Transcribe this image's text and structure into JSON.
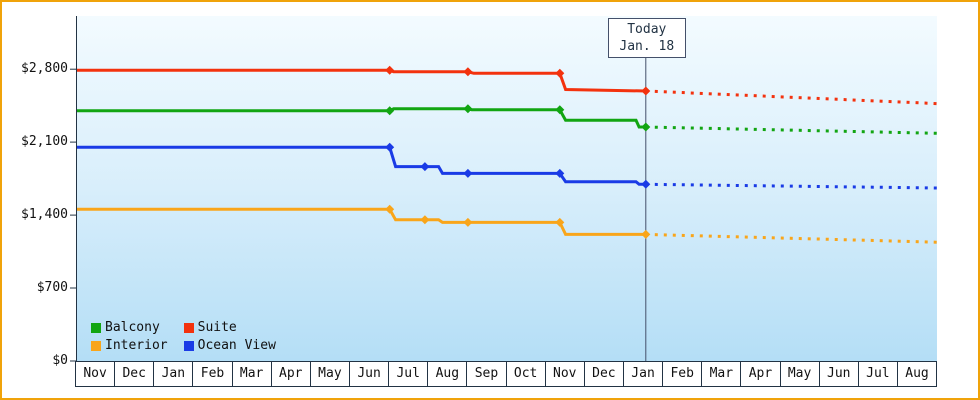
{
  "chart_data": {
    "type": "line",
    "x_axis": {
      "tick_labels": [
        "Nov",
        "Dec",
        "Jan",
        "Feb",
        "Mar",
        "Apr",
        "May",
        "Jun",
        "Jul",
        "Aug",
        "Sep",
        "Oct",
        "Nov",
        "Dec",
        "Jan",
        "Feb",
        "Mar",
        "Apr",
        "May",
        "Jun",
        "Jul",
        "Aug"
      ],
      "range_months": [
        0,
        22
      ]
    },
    "y_axis": {
      "range": [
        0,
        3310
      ],
      "ticks": [
        {
          "label": "$2,800",
          "value": 2800
        },
        {
          "label": "$2,100",
          "value": 2100
        },
        {
          "label": "$1,400",
          "value": 1400
        },
        {
          "label": "$700",
          "value": 700
        },
        {
          "label": "$0",
          "value": 0
        }
      ],
      "grid": false
    },
    "today": {
      "x_month": 14.55,
      "line1": "Today",
      "line2": "Jan. 18"
    },
    "series": [
      {
        "name": "Suite",
        "color": "#f3320e",
        "solid": [
          [
            0,
            2790
          ],
          [
            8,
            2790
          ],
          [
            8.1,
            2775
          ],
          [
            10,
            2775
          ],
          [
            10.15,
            2760
          ],
          [
            12.35,
            2760
          ],
          [
            12.5,
            2605
          ],
          [
            14.55,
            2590
          ]
        ],
        "markers": [
          [
            8,
            2790
          ],
          [
            10,
            2775
          ],
          [
            12.35,
            2760
          ],
          [
            14.55,
            2590
          ]
        ],
        "dotted": [
          [
            14.55,
            2590
          ],
          [
            22,
            2470
          ]
        ]
      },
      {
        "name": "Balcony",
        "color": "#12a512",
        "solid": [
          [
            0,
            2400
          ],
          [
            8,
            2400
          ],
          [
            8.1,
            2420
          ],
          [
            10,
            2420
          ],
          [
            10.1,
            2410
          ],
          [
            12.35,
            2410
          ],
          [
            12.5,
            2310
          ],
          [
            14.3,
            2310
          ],
          [
            14.38,
            2245
          ],
          [
            14.55,
            2245
          ]
        ],
        "markers": [
          [
            8,
            2400
          ],
          [
            10,
            2420
          ],
          [
            12.35,
            2410
          ],
          [
            14.55,
            2245
          ]
        ],
        "dotted": [
          [
            14.55,
            2245
          ],
          [
            22,
            2185
          ]
        ]
      },
      {
        "name": "Ocean View",
        "color": "#1a3be6",
        "solid": [
          [
            0,
            2050
          ],
          [
            8,
            2050
          ],
          [
            8.15,
            1865
          ],
          [
            9.25,
            1865
          ],
          [
            9.35,
            1800
          ],
          [
            12.35,
            1800
          ],
          [
            12.5,
            1720
          ],
          [
            14.3,
            1720
          ],
          [
            14.38,
            1695
          ],
          [
            14.55,
            1695
          ]
        ],
        "markers": [
          [
            8,
            2050
          ],
          [
            8.9,
            1865
          ],
          [
            10,
            1800
          ],
          [
            12.35,
            1800
          ],
          [
            14.55,
            1695
          ]
        ],
        "dotted": [
          [
            14.55,
            1695
          ],
          [
            22,
            1660
          ]
        ]
      },
      {
        "name": "Interior",
        "color": "#f9a51a",
        "solid": [
          [
            0,
            1455
          ],
          [
            8,
            1455
          ],
          [
            8.15,
            1355
          ],
          [
            9.25,
            1355
          ],
          [
            9.35,
            1330
          ],
          [
            12.35,
            1330
          ],
          [
            12.5,
            1215
          ],
          [
            14.55,
            1215
          ]
        ],
        "markers": [
          [
            8,
            1455
          ],
          [
            8.9,
            1355
          ],
          [
            10,
            1330
          ],
          [
            12.35,
            1330
          ],
          [
            14.55,
            1215
          ]
        ],
        "dotted": [
          [
            14.55,
            1215
          ],
          [
            22,
            1140
          ]
        ]
      }
    ],
    "legend": {
      "position": "bottom-left-inside",
      "items": [
        {
          "label": "Balcony",
          "color": "#12a512"
        },
        {
          "label": "Suite",
          "color": "#f3320e"
        },
        {
          "label": "Interior",
          "color": "#f9a51a"
        },
        {
          "label": "Ocean View",
          "color": "#1a3be6"
        }
      ]
    }
  }
}
